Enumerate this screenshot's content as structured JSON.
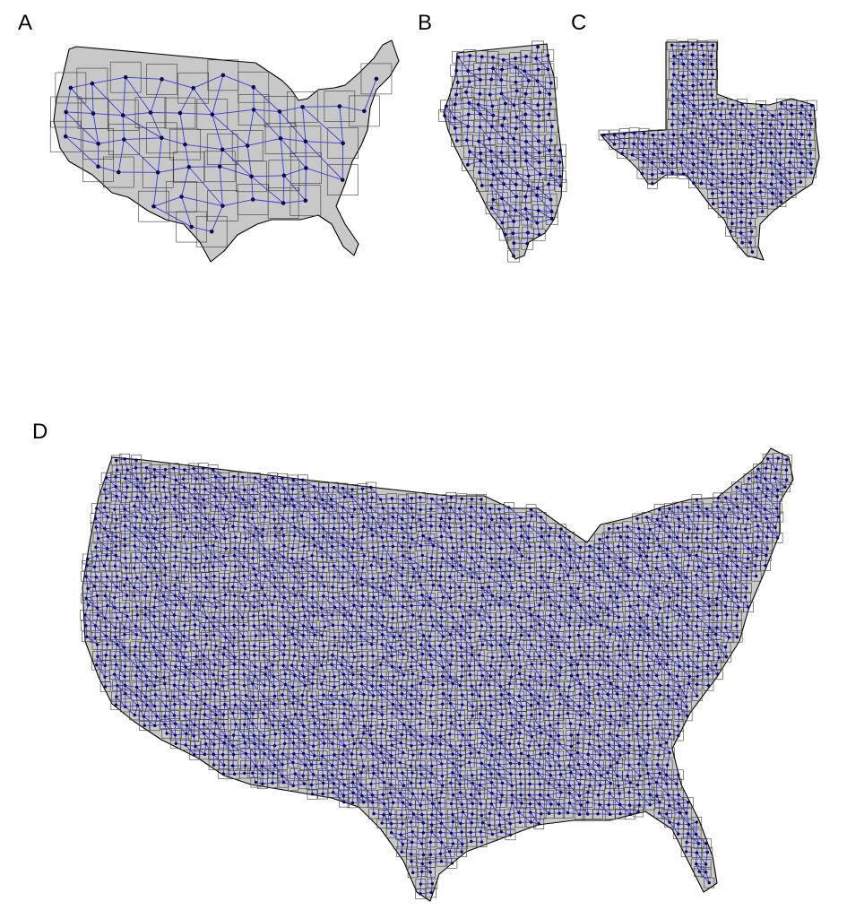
{
  "panels": [
    {
      "id": "A",
      "label": "A"
    },
    {
      "id": "B",
      "label": "B"
    },
    {
      "id": "C",
      "label": "C"
    },
    {
      "id": "D",
      "label": "D"
    }
  ],
  "colors": {
    "land": "#c8c8c8",
    "edge": "#3a3adc",
    "node": "#0b0b50",
    "border": "#000000"
  }
}
